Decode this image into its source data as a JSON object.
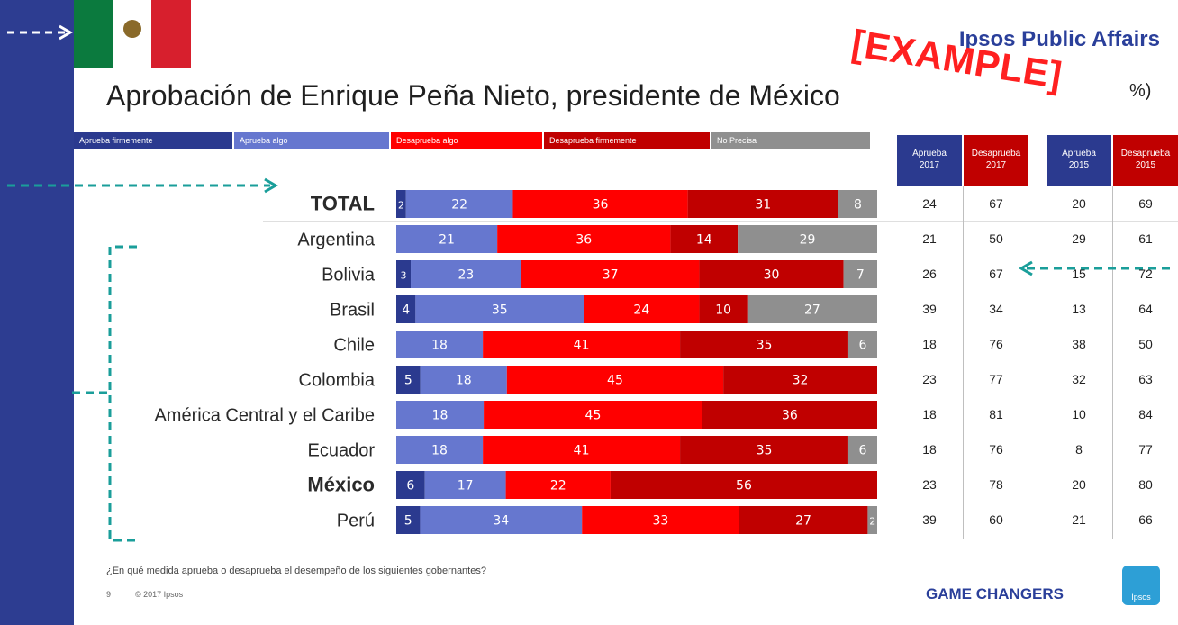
{
  "brand": "Ipsos Public Affairs",
  "stamp": "[EXAMPLE]",
  "title": "Aprobación de Enrique Peña Nieto, presidente de México",
  "title_suffix": "%)",
  "question": "¿En qué medida aprueba o desaprueba el desempeño de los siguientes gobernantes?",
  "page_number": "9",
  "copyright": "© 2017 Ipsos",
  "tagline": "GAME CHANGERS",
  "logo_text": "Ipsos",
  "icons": [
    "flag-icon",
    "ipsos-logo-icon",
    "arrow-icon"
  ],
  "colors": {
    "aprueba_firmemente": "#2b3a8f",
    "aprueba_algo": "#6677cf",
    "desaprueba_algo": "#ff0000",
    "desaprueba_firmemente": "#c00000",
    "no_precisa": "#8f8f8f",
    "header_aprueba": "#2b3a8f",
    "header_desaprueba": "#c00000",
    "sidebar": "#2d3d91",
    "annotation_teal": "#1a9e9a"
  },
  "chart_data": {
    "type": "bar",
    "orientation": "horizontal",
    "stacked": true,
    "percent": true,
    "title": "Aprobación de Enrique Peña Nieto, presidente de México",
    "legend_position": "top",
    "categories": [
      "TOTAL",
      "Argentina",
      "Bolivia",
      "Brasil",
      "Chile",
      "Colombia",
      "América Central y el Caribe",
      "Ecuador",
      "México",
      "Perú"
    ],
    "bold_categories": [
      "TOTAL",
      "México"
    ],
    "series": [
      {
        "name": "Aprueba firmemente",
        "values": [
          2,
          0,
          3,
          4,
          0,
          5,
          0,
          0,
          6,
          5
        ]
      },
      {
        "name": "Aprueba algo",
        "values": [
          22,
          21,
          23,
          35,
          18,
          18,
          18,
          18,
          17,
          34
        ]
      },
      {
        "name": "Desaprueba algo",
        "values": [
          36,
          36,
          37,
          24,
          41,
          45,
          45,
          41,
          22,
          33
        ]
      },
      {
        "name": "Desaprueba firmemente",
        "values": [
          31,
          14,
          30,
          10,
          35,
          32,
          36,
          35,
          56,
          27
        ]
      },
      {
        "name": "No Precisa",
        "values": [
          8,
          29,
          7,
          27,
          6,
          0,
          0,
          6,
          0,
          2
        ]
      }
    ],
    "table": {
      "columns": [
        {
          "label": "Aprueba 2017",
          "values": [
            24,
            21,
            26,
            39,
            18,
            23,
            18,
            18,
            23,
            39
          ]
        },
        {
          "label": "Desaprueba 2017",
          "values": [
            67,
            50,
            67,
            34,
            76,
            77,
            81,
            76,
            78,
            60
          ]
        },
        {
          "label": "Aprueba 2015",
          "values": [
            20,
            29,
            15,
            13,
            38,
            32,
            10,
            8,
            20,
            21
          ]
        },
        {
          "label": "Desaprueba 2015",
          "values": [
            69,
            61,
            72,
            64,
            50,
            63,
            84,
            77,
            80,
            66
          ]
        }
      ]
    }
  }
}
